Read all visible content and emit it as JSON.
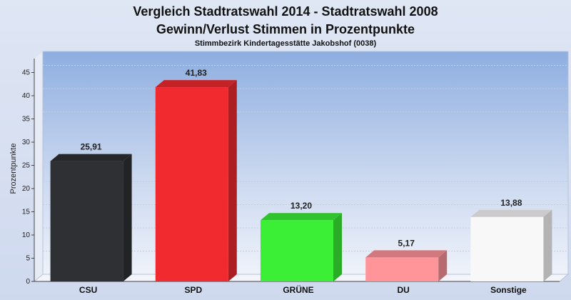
{
  "chart_data": {
    "type": "bar",
    "title": "Vergleich Stadtratswahl 2014 - Stadtratswahl 2008",
    "title2": "Gewinn/Verlust Stimmen in Prozentpunkte",
    "subtitle": "Stimmbezirk Kindertagesstätte Jakobshof (0038)",
    "ylabel": "Prozentpunkte",
    "xlabel": "",
    "ylim": [
      0,
      48
    ],
    "yticks": [
      0,
      5,
      10,
      15,
      20,
      25,
      30,
      35,
      40,
      45
    ],
    "grid": true,
    "categories": [
      "CSU",
      "SPD",
      "GRÜNE",
      "DU",
      "Sonstige"
    ],
    "values": [
      25.91,
      41.83,
      13.2,
      5.17,
      13.88
    ],
    "value_labels": [
      "25,91",
      "41,83",
      "13,20",
      "5,17",
      "13,88"
    ],
    "colors": [
      "#2e3033",
      "#f02a2f",
      "#3bef36",
      "#ff9499",
      "#f8f8f8"
    ]
  }
}
